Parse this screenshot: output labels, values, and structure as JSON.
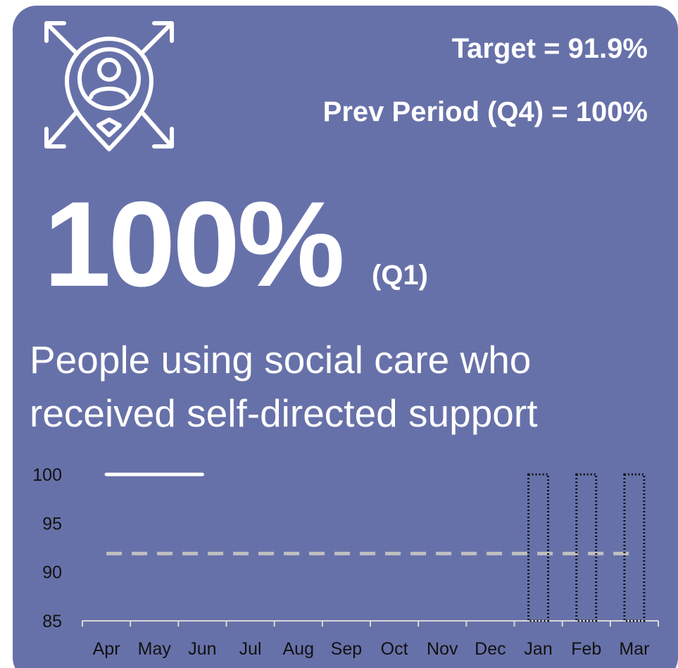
{
  "target_label": "Target = 91.9%",
  "prev_period_label": "Prev Period (Q4) = 100%",
  "headline": "100%",
  "headline_period": "(Q1)",
  "description_lines": [
    "People using social care who",
    "received self-directed support"
  ],
  "chart_data": {
    "type": "combo",
    "categories": [
      "Apr",
      "May",
      "Jun",
      "Jul",
      "Aug",
      "Sep",
      "Oct",
      "Nov",
      "Dec",
      "Jan",
      "Feb",
      "Mar"
    ],
    "series": [
      {
        "kind": "line",
        "color": "#ffffff",
        "values": [
          100,
          100,
          100,
          null,
          null,
          null,
          null,
          null,
          null,
          null,
          null,
          null
        ]
      },
      {
        "kind": "bar",
        "color": "#111111",
        "values": [
          null,
          null,
          null,
          null,
          null,
          null,
          null,
          null,
          null,
          100,
          100,
          100
        ]
      },
      {
        "kind": "dashed-line",
        "color": "#bfbfbf",
        "values": [
          91.9,
          91.9,
          91.9,
          91.9,
          91.9,
          91.9,
          91.9,
          91.9,
          91.9,
          91.9,
          91.9,
          91.9
        ]
      }
    ],
    "ylim": [
      85,
      100
    ],
    "yticks": [
      85,
      90,
      95,
      100
    ],
    "grid": false
  }
}
